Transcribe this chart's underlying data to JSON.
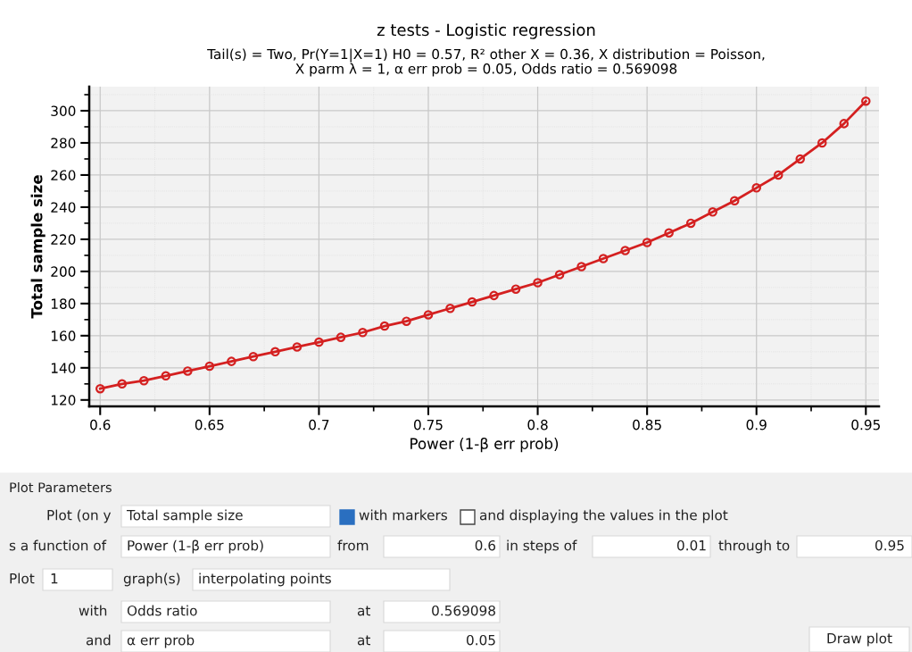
{
  "chart_data": {
    "type": "line",
    "title": "z tests - Logistic regression",
    "subtitle": "Tail(s) = Two, Pr(Y=1|X=1) H0 = 0.57, R² other X = 0.36, X distribution = Poisson,\nX parm λ = 1, α err prob = 0.05, Odds ratio = 0.569098",
    "xlabel": "Power (1-β err prob)",
    "ylabel": "Total sample size",
    "x": [
      0.6,
      0.61,
      0.62,
      0.63,
      0.64,
      0.65,
      0.66,
      0.67,
      0.68,
      0.69,
      0.7,
      0.71,
      0.72,
      0.73,
      0.74,
      0.75,
      0.76,
      0.77,
      0.78,
      0.79,
      0.8,
      0.81,
      0.82,
      0.83,
      0.84,
      0.85,
      0.86,
      0.87,
      0.88,
      0.89,
      0.9,
      0.91,
      0.92,
      0.93,
      0.94,
      0.95
    ],
    "series": [
      {
        "color": "#d42020",
        "values": [
          127,
          130,
          132,
          135,
          138,
          141,
          144,
          147,
          150,
          153,
          156,
          159,
          162,
          166,
          169,
          173,
          177,
          181,
          185,
          189,
          193,
          198,
          203,
          208,
          213,
          218,
          224,
          230,
          237,
          244,
          252,
          260,
          270,
          280,
          292,
          306
        ]
      }
    ],
    "xlim": [
      0.595,
      0.956
    ],
    "ylim": [
      116,
      315
    ],
    "xticks": [
      0.6,
      {
        "value": 0.625,
        "label": null
      },
      0.65,
      {
        "value": 0.675,
        "label": null
      },
      0.7,
      {
        "value": 0.725,
        "label": null
      },
      0.75,
      {
        "value": 0.775,
        "label": null
      },
      0.8,
      {
        "value": 0.825,
        "label": null
      },
      0.85,
      {
        "value": 0.875,
        "label": null
      },
      0.9,
      {
        "value": 0.925,
        "label": null
      },
      0.95
    ],
    "yticks": [
      120,
      {
        "value": 130,
        "label": null
      },
      140,
      {
        "value": 150,
        "label": null
      },
      160,
      {
        "value": 170,
        "label": null
      },
      180,
      {
        "value": 190,
        "label": null
      },
      200,
      {
        "value": 210,
        "label": null
      },
      220,
      {
        "value": 230,
        "label": null
      },
      240,
      {
        "value": 250,
        "label": null
      },
      260,
      {
        "value": 270,
        "label": null
      },
      280,
      {
        "value": 290,
        "label": null
      },
      300,
      {
        "value": 310,
        "label": null
      }
    ],
    "grid": true,
    "marker": "circle",
    "line_style": "solid",
    "annotations": [
      "Plot Parameters",
      "Plot (on y",
      "Total sample size",
      "with markers",
      "and displaying the values in the plot",
      "s a function of",
      "Power (1-β err prob)",
      "from",
      "0.6",
      "in steps of",
      "0.01",
      "through to",
      "0.95",
      "Plot",
      "1",
      "graph(s)",
      "interpolating points",
      "with",
      "Odds ratio",
      "at",
      "0.569098",
      "and",
      "α err prob",
      "at",
      "0.05",
      "Draw plot"
    ]
  }
}
